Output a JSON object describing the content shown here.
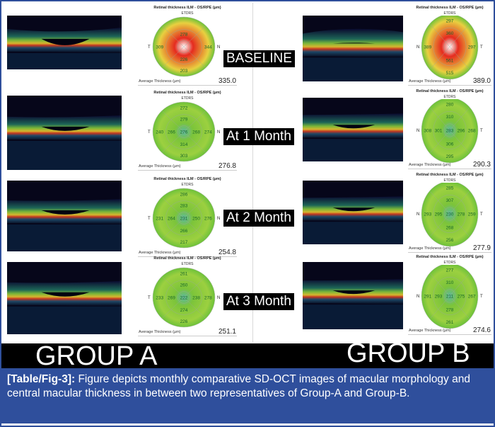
{
  "groups": {
    "a": "GROUP A",
    "b": "GROUP B"
  },
  "timepoints": [
    "BASELINE",
    "At 1 Month",
    "At 2 Month",
    "At 3 Month"
  ],
  "map_common": {
    "title": "Retinal thickness ILM - OS/RPE (µm)",
    "etdrs": "ETDRS",
    "avg_label": "Average Thickness   (µm)"
  },
  "group_a_maps": [
    {
      "left_side": "T",
      "right_side": "N",
      "values": [
        "",
        "278",
        "309",
        "",
        "",
        "",
        "344",
        "226",
        "203"
      ],
      "avg": "335.0"
    },
    {
      "left_side": "T",
      "right_side": "N",
      "values": [
        "272",
        "279",
        "240",
        "266",
        "276",
        "268",
        "274",
        "314",
        "303"
      ],
      "avg": "276.8"
    },
    {
      "left_side": "T",
      "right_side": "N",
      "values": [
        "286",
        "283",
        "231",
        "264",
        "231",
        "250",
        "276",
        "266",
        "217"
      ],
      "avg": "254.8"
    },
    {
      "left_side": "T",
      "right_side": "N",
      "values": [
        "261",
        "260",
        "233",
        "269",
        "222",
        "238",
        "278",
        "274",
        "226"
      ],
      "avg": "251.1"
    }
  ],
  "group_b_maps": [
    {
      "left_side": "N",
      "right_side": "T",
      "values": [
        "297",
        "360",
        "389",
        "",
        "",
        "",
        "297",
        "561",
        "515"
      ],
      "avg": "389.0"
    },
    {
      "left_side": "N",
      "right_side": "T",
      "values": [
        "280",
        "310",
        "308",
        "301",
        "283",
        "296",
        "268",
        "306",
        "295"
      ],
      "avg": "290.3"
    },
    {
      "left_side": "N",
      "right_side": "T",
      "values": [
        "285",
        "307",
        "293",
        "295",
        "230",
        "278",
        "259",
        "268",
        "256"
      ],
      "avg": "277.9"
    },
    {
      "left_side": "N",
      "right_side": "T",
      "values": [
        "277",
        "310",
        "291",
        "293",
        "211",
        "275",
        "267",
        "278",
        "261"
      ],
      "avg": "274.6"
    }
  ],
  "map_colors": {
    "normal": "#6cc13a",
    "thick": "#e8e03a",
    "very_thick": "#e52b1f",
    "thin": "#2aa6d6"
  },
  "caption": {
    "label": "[Table/Fig-3]:",
    "text": "Figure depicts monthly comparative SD-OCT images of macular morphology and central macular thickness in between two representatives of Group-A and Group-B."
  }
}
